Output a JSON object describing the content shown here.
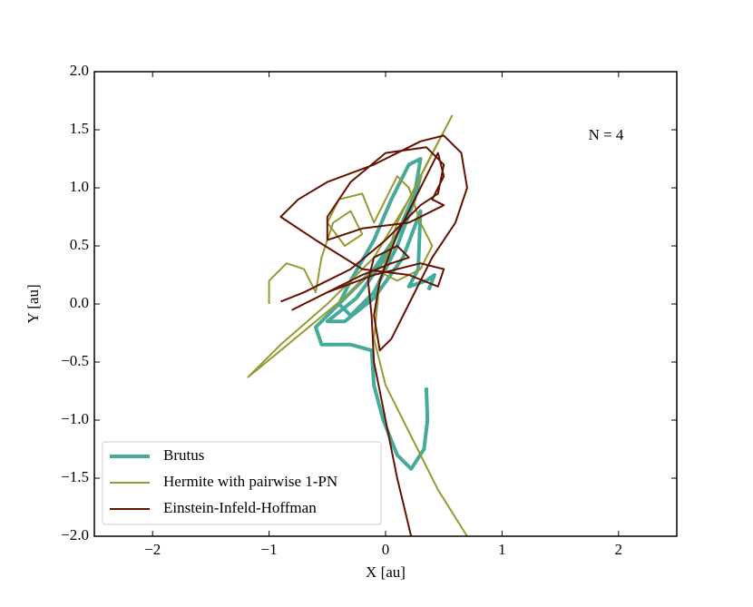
{
  "chart_data": {
    "type": "line",
    "xlabel": "X [au]",
    "ylabel": "Y [au]",
    "annotation": "N = 4",
    "xlim": [
      -2.5,
      2.5
    ],
    "ylim": [
      -2.0,
      2.0
    ],
    "xticks": [
      {
        "value": -2,
        "label": "−2"
      },
      {
        "value": -1,
        "label": "−1"
      },
      0,
      1,
      2
    ],
    "yticks": [
      {
        "value": -2.0,
        "label": "−2.0"
      },
      {
        "value": -1.5,
        "label": "−1.5"
      },
      {
        "value": -1.0,
        "label": "−1.0"
      },
      {
        "value": -0.5,
        "label": "−0.5"
      },
      {
        "value": 0.0,
        "label": "0.0"
      },
      {
        "value": 0.5,
        "label": "0.5"
      },
      {
        "value": 1.0,
        "label": "1.0"
      },
      {
        "value": 1.5,
        "label": "1.5"
      },
      {
        "value": 2.0,
        "label": "2.0"
      }
    ],
    "legend": "lower left",
    "series": [
      {
        "name": "Brutus",
        "color": "#44aa99",
        "width": 4,
        "x": [
          0.35,
          0.36,
          0.33,
          0.22,
          0.1,
          -0.02,
          -0.1,
          -0.12,
          -0.3,
          -0.55,
          -0.6,
          -0.4,
          -0.1,
          0.1,
          0.25,
          0.3,
          0.2,
          0.05,
          -0.1,
          -0.3,
          -0.4,
          -0.3,
          -0.1,
          0.1,
          0.25,
          0.3,
          0.2,
          0.0,
          -0.25,
          -0.5,
          -0.35,
          -0.1,
          0.15,
          0.3,
          0.28,
          0.2,
          0.35,
          0.42,
          0.37
        ],
        "values": [
          -0.72,
          -1.0,
          -1.25,
          -1.42,
          -1.3,
          -1.0,
          -0.7,
          -0.4,
          -0.35,
          -0.35,
          -0.2,
          0.0,
          0.3,
          0.6,
          0.95,
          1.25,
          1.2,
          0.9,
          0.55,
          0.2,
          0.0,
          -0.1,
          0.1,
          0.5,
          0.9,
          1.1,
          0.8,
          0.4,
          0.05,
          -0.15,
          -0.15,
          0.05,
          0.4,
          0.8,
          0.3,
          0.15,
          0.2,
          0.25,
          0.12
        ]
      },
      {
        "name": "Hermite with pairwise 1-PN",
        "color": "#999933",
        "width": 2,
        "x": [
          -1.0,
          -1.0,
          -0.85,
          -0.7,
          -0.6,
          -0.55,
          -0.45,
          -0.3,
          -0.2,
          -0.35,
          -0.5,
          -0.4,
          -0.2,
          -0.1,
          0.0,
          0.1,
          0.2,
          0.3,
          0.4,
          0.3,
          0.1,
          -0.1,
          -0.3,
          -0.6,
          -0.9,
          -1.18,
          -0.9,
          -0.5,
          -0.1,
          0.2,
          0.57,
          0.35,
          0.1,
          -0.05,
          -0.1,
          0.0,
          0.2,
          0.45,
          0.7
        ],
        "values": [
          0.0,
          0.2,
          0.35,
          0.3,
          0.1,
          0.4,
          0.7,
          0.8,
          0.6,
          0.5,
          0.7,
          0.9,
          0.95,
          0.7,
          0.9,
          1.1,
          1.0,
          0.7,
          0.5,
          0.3,
          0.2,
          0.3,
          0.1,
          -0.15,
          -0.4,
          -0.63,
          -0.35,
          0.0,
          0.4,
          0.9,
          1.62,
          1.2,
          0.7,
          0.2,
          -0.3,
          -0.7,
          -1.1,
          -1.6,
          -2.0
        ]
      },
      {
        "name": "Einstein-Infeld-Hoffman",
        "color": "#661100",
        "width": 2,
        "x": [
          0.22,
          0.1,
          0.0,
          -0.1,
          -0.12,
          -0.15,
          -0.1,
          0.1,
          0.2,
          0.05,
          -0.2,
          -0.5,
          -0.8,
          -0.5,
          -0.1,
          0.3,
          0.5,
          0.45,
          0.2,
          -0.2,
          -0.6,
          -0.9,
          -0.75,
          -0.5,
          -0.1,
          0.3,
          0.5,
          0.65,
          0.7,
          0.6,
          0.4,
          0.2,
          0.05,
          -0.05,
          -0.1,
          -0.05,
          0.1,
          0.3,
          0.45,
          0.5,
          0.4,
          0.5,
          0.2,
          -0.2,
          -0.5,
          -0.5,
          -0.3,
          0.0,
          0.35,
          0.5,
          0.45,
          0.3,
          0.0,
          -0.3,
          -0.7,
          -0.9
        ],
        "values": [
          -2.0,
          -1.5,
          -1.0,
          -0.5,
          -0.1,
          0.2,
          0.4,
          0.5,
          0.4,
          0.35,
          0.25,
          0.1,
          -0.05,
          0.1,
          0.25,
          0.35,
          0.3,
          0.15,
          0.25,
          0.3,
          0.55,
          0.75,
          0.9,
          1.05,
          1.2,
          1.4,
          1.45,
          1.3,
          1.0,
          0.7,
          0.4,
          0.0,
          -0.3,
          -0.4,
          -0.1,
          0.2,
          0.6,
          1.0,
          1.3,
          1.1,
          0.9,
          0.85,
          0.7,
          0.65,
          0.55,
          0.75,
          1.05,
          1.3,
          1.35,
          1.2,
          0.95,
          0.85,
          0.55,
          0.3,
          0.1,
          0.02
        ]
      }
    ]
  }
}
